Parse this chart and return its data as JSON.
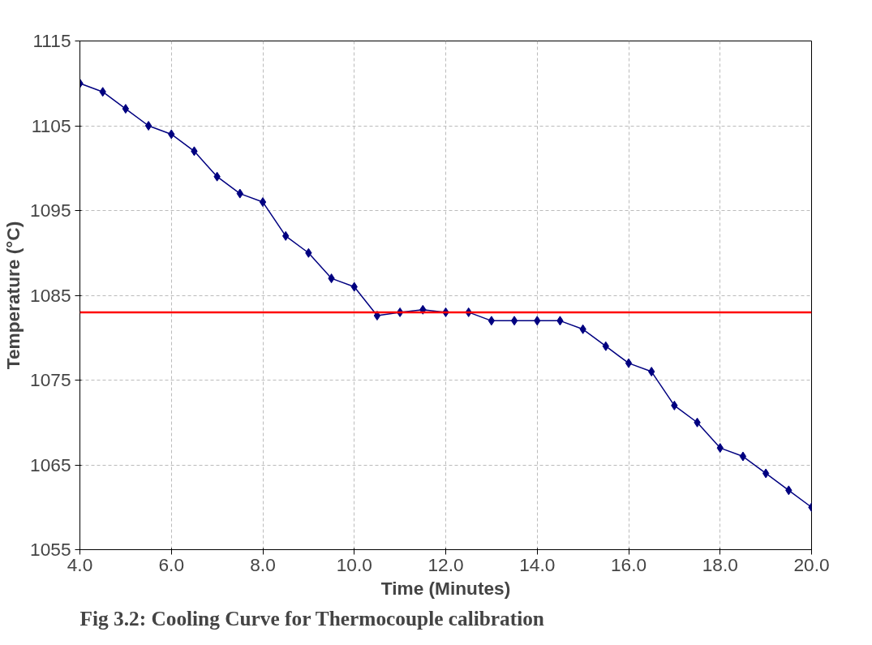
{
  "chart_data": {
    "type": "line",
    "xlabel": "Time (Minutes)",
    "ylabel": "Temperature (°C)",
    "x": [
      4.0,
      4.5,
      5.0,
      5.5,
      6.0,
      6.5,
      7.0,
      7.5,
      8.0,
      8.5,
      9.0,
      9.5,
      10.0,
      10.5,
      11.0,
      11.5,
      12.0,
      12.5,
      13.0,
      13.5,
      14.0,
      14.5,
      15.0,
      15.5,
      16.0,
      16.5,
      17.0,
      17.5,
      18.0,
      18.5,
      19.0,
      19.5,
      20.0
    ],
    "series": [
      {
        "color": "#000080",
        "values": [
          1110,
          1109,
          1107,
          1105,
          1104,
          1102,
          1099,
          1097,
          1096,
          1092,
          1090,
          1087,
          1086,
          1082.6,
          1083,
          1083.3,
          1083,
          1083,
          1082,
          1082,
          1082,
          1082,
          1081,
          1079,
          1077,
          1076,
          1072,
          1070,
          1067,
          1066,
          1064,
          1062,
          1060
        ]
      }
    ],
    "xlim": [
      4,
      20
    ],
    "xticks": [
      {
        "value": 4,
        "label": "4.0"
      },
      {
        "value": 6,
        "label": "6.0"
      },
      {
        "value": 8,
        "label": "8.0"
      },
      {
        "value": 10,
        "label": "10.0"
      },
      {
        "value": 12,
        "label": "12.0"
      },
      {
        "value": 14,
        "label": "14.0"
      },
      {
        "value": 16,
        "label": "16.0"
      },
      {
        "value": 18,
        "label": "18.0"
      },
      {
        "value": 20,
        "label": "20.0"
      }
    ],
    "ylim": [
      1055,
      1115
    ],
    "yticks": [
      1055,
      1065,
      1075,
      1085,
      1095,
      1105,
      1115
    ],
    "ref_lines": [
      {
        "axis": "y",
        "value": 1083,
        "color": "#ff0000"
      }
    ],
    "annotations": [
      "Fig 3.2: Cooling Curve for Thermocouple calibration"
    ],
    "grid": true,
    "marker": "diamond",
    "line_style": "solid"
  }
}
